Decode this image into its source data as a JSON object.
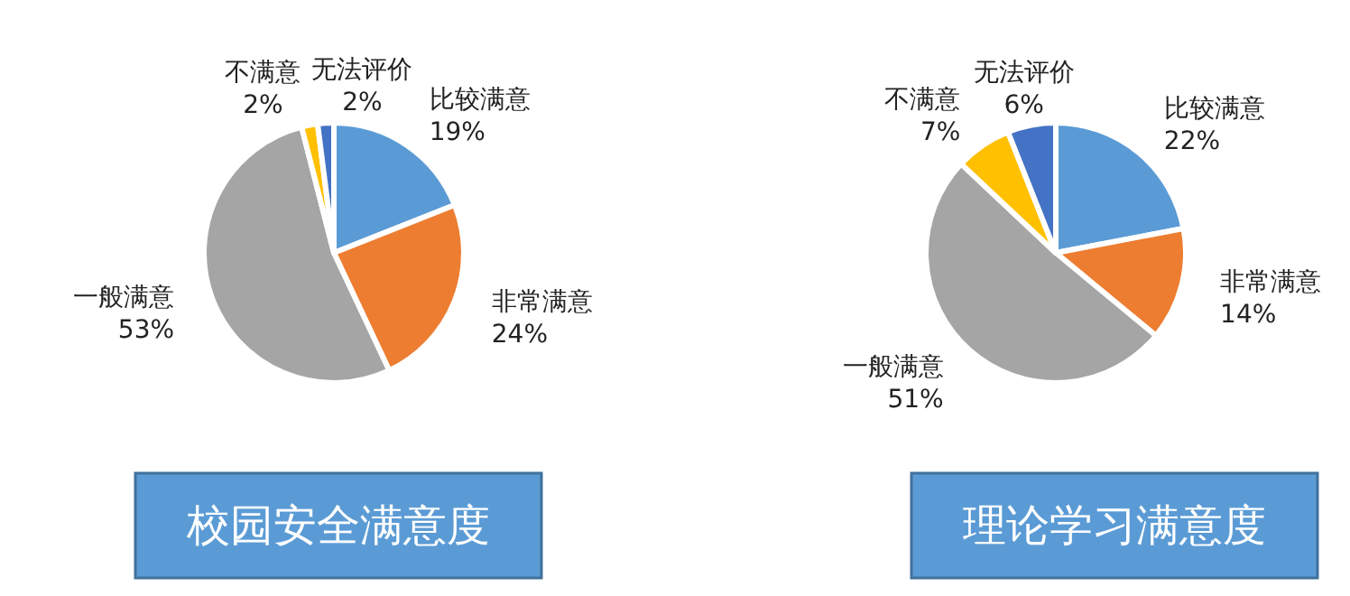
{
  "chart_data": [
    {
      "type": "pie",
      "title": "校园安全满意度",
      "categories": [
        "比较满意",
        "非常满意",
        "一般满意",
        "不满意",
        "无法评价"
      ],
      "values": [
        19,
        24,
        53,
        2,
        2
      ],
      "value_labels": [
        "19%",
        "24%",
        "53%",
        "2%",
        "2%"
      ],
      "colors": [
        "#5b9bd5",
        "#ed7d31",
        "#a5a5a5",
        "#ffc000",
        "#4472c4"
      ]
    },
    {
      "type": "pie",
      "title": "理论学习满意度",
      "categories": [
        "比较满意",
        "非常满意",
        "一般满意",
        "不满意",
        "无法评价"
      ],
      "values": [
        22,
        14,
        51,
        7,
        6
      ],
      "value_labels": [
        "22%",
        "14%",
        "51%",
        "7%",
        "6%"
      ],
      "colors": [
        "#5b9bd5",
        "#ed7d31",
        "#a5a5a5",
        "#ffc000",
        "#4472c4"
      ]
    }
  ]
}
